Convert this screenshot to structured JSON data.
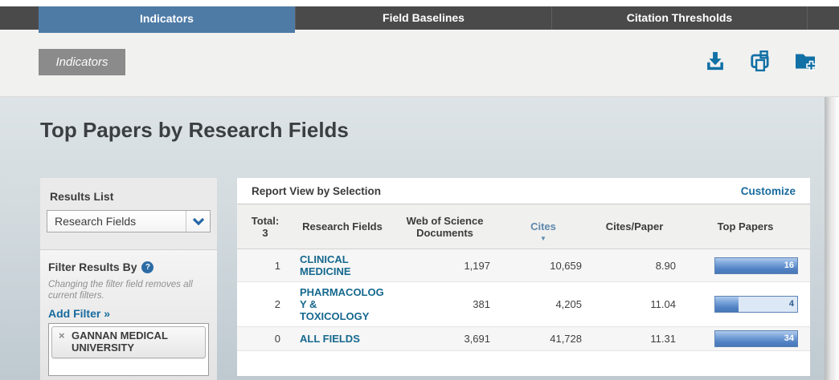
{
  "tabs": {
    "items": [
      {
        "label": "Indicators",
        "active": true
      },
      {
        "label": "Field Baselines",
        "active": false
      },
      {
        "label": "Citation Thresholds",
        "active": false
      }
    ]
  },
  "toolbar": {
    "breadcrumb": "Indicators",
    "icons": [
      "download-icon",
      "print-icon",
      "add-to-folder-icon"
    ],
    "icon_color": "#1170a5"
  },
  "page": {
    "title": "Top Papers by Research Fields"
  },
  "sidebar": {
    "results_list_label": "Results List",
    "results_list_value": "Research Fields",
    "filter_section_label": "Filter Results By",
    "help_symbol": "?",
    "filter_note": "Changing the filter field removes all current filters.",
    "add_filter_label": "Add Filter »",
    "filters": [
      {
        "remove_symbol": "×",
        "label": "GANNAN MEDICAL UNIVERSITY"
      }
    ]
  },
  "table": {
    "panel_title": "Report View by Selection",
    "customize_label": "Customize",
    "columns": {
      "rank": "Total:\n3",
      "field": "Research Fields",
      "wos": "Web of Science\nDocuments",
      "cites": "Cites",
      "cites_arrow": "▼",
      "cpp": "Cites/Paper",
      "top": "Top Papers"
    },
    "sorted_by": "Cites",
    "rows": [
      {
        "rank": "1",
        "field": "CLINICAL MEDICINE",
        "field_wrapped": "CLINICAL\nMEDICINE",
        "wos_documents": "1,197",
        "cites": "10,659",
        "cites_per_paper": "8.90",
        "top_papers": "16",
        "bar_fill_pct": 100
      },
      {
        "rank": "2",
        "field": "PHARMACOLOGY & TOXICOLOGY",
        "field_wrapped": "PHARMACOLOG\nY &\nTOXICOLOGY",
        "wos_documents": "381",
        "cites": "4,205",
        "cites_per_paper": "11.04",
        "top_papers": "4",
        "bar_fill_pct": 28
      },
      {
        "rank": "0",
        "field": "ALL FIELDS",
        "field_wrapped": "ALL FIELDS",
        "wos_documents": "3,691",
        "cites": "41,728",
        "cites_per_paper": "11.31",
        "top_papers": "34",
        "bar_fill_pct": 100
      }
    ]
  },
  "colors": {
    "active_tab": "#4e7ba6",
    "tab_bar": "#4a4a4b",
    "link_blue": "#176a9e",
    "field_link_blue": "#15688e",
    "bar_border": "#5b82b6",
    "bar_fill": "#4f80c2",
    "bar_track": "#dde8f6"
  }
}
